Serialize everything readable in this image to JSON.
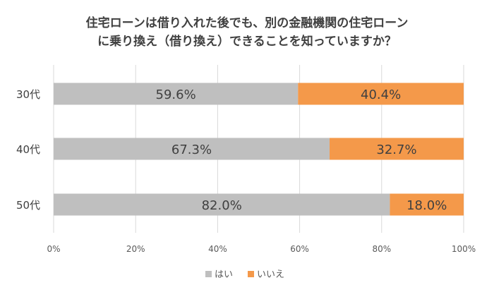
{
  "chart_data": {
    "type": "bar",
    "orientation": "horizontal",
    "stacked": true,
    "title": [
      "住宅ローンは借り入れた後でも、別の金融機関の住宅ローン",
      "に乗り換え（借り換え）できることを知っていますか？"
    ],
    "categories": [
      "30代",
      "40代",
      "50代"
    ],
    "series": [
      {
        "name": "はい",
        "color": "#bfbfbf",
        "values": [
          59.6,
          67.3,
          82.0
        ],
        "labels": [
          "59.6%",
          "67.3%",
          "82.0%"
        ]
      },
      {
        "name": "いいえ",
        "color": "#f4994a",
        "values": [
          40.4,
          32.7,
          18.0
        ],
        "labels": [
          "40.4%",
          "32.7%",
          "18.0%"
        ]
      }
    ],
    "xlim": [
      0,
      100
    ],
    "xticks": [
      0,
      20,
      40,
      60,
      80,
      100
    ],
    "xtick_labels": [
      "0%",
      "20%",
      "40%",
      "60%",
      "80%",
      "100%"
    ],
    "grid": true,
    "legend_position": "bottom"
  }
}
